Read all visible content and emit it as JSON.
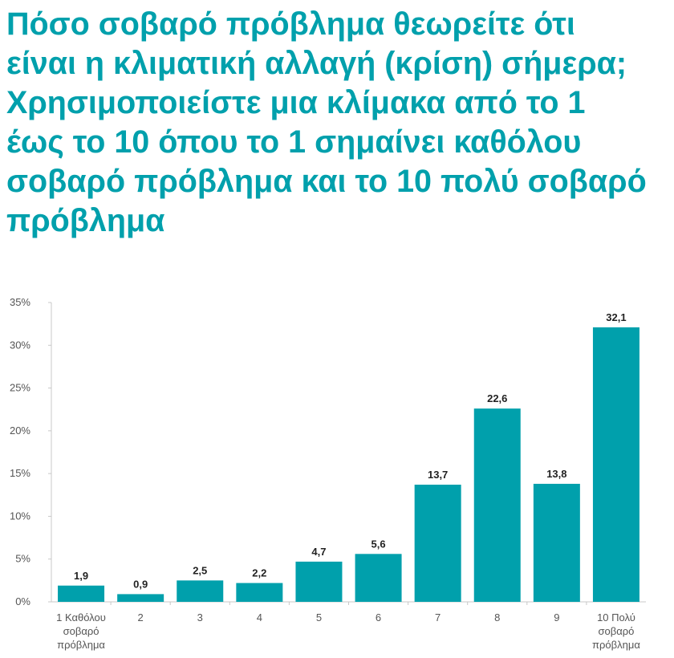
{
  "title_lines": [
    "Πόσο σοβαρό πρόβλημα θεωρείτε ότι",
    "είναι η κλιματική αλλαγή (κρίση) σήμερα;",
    "Χρησιμοποιείστε μια κλίμακα από το 1",
    "έως το 10 όπου το 1 σημαίνει καθόλου",
    "σοβαρό πρόβλημα και το 10 πολύ σοβαρό",
    "πρόβλημα"
  ],
  "chart_data": {
    "type": "bar",
    "title": "Πόσο σοβαρό πρόβλημα θεωρείτε ότι είναι η κλιματική αλλαγή (κρίση) σήμερα; Χρησιμοποιείστε μια κλίμακα από το 1 έως το 10 όπου το 1 σημαίνει καθόλου σοβαρό πρόβλημα και το 10 πολύ σοβαρό πρόβλημα",
    "categories": [
      [
        "1 Καθόλου",
        "σοβαρό",
        "πρόβλημα"
      ],
      [
        "2"
      ],
      [
        "3"
      ],
      [
        "4"
      ],
      [
        "5"
      ],
      [
        "6"
      ],
      [
        "7"
      ],
      [
        "8"
      ],
      [
        "9"
      ],
      [
        "10 Πολύ",
        "σοβαρό",
        "πρόβλημα"
      ]
    ],
    "values": [
      1.9,
      0.9,
      2.5,
      2.2,
      4.7,
      5.6,
      13.7,
      22.6,
      13.8,
      32.1
    ],
    "value_labels": [
      "1,9",
      "0,9",
      "2,5",
      "2,2",
      "4,7",
      "5,6",
      "13,7",
      "22,6",
      "13,8",
      "32,1"
    ],
    "ylim": [
      0,
      35
    ],
    "yticks": [
      0,
      5,
      10,
      15,
      20,
      25,
      30,
      35
    ],
    "ytick_labels": [
      "0%",
      "5%",
      "10%",
      "15%",
      "20%",
      "25%",
      "30%",
      "35%"
    ],
    "xlabel": "",
    "ylabel": "",
    "grid": false,
    "legend": "none",
    "bar_color": "#00a0ac",
    "title_color": "#00a0ac"
  }
}
